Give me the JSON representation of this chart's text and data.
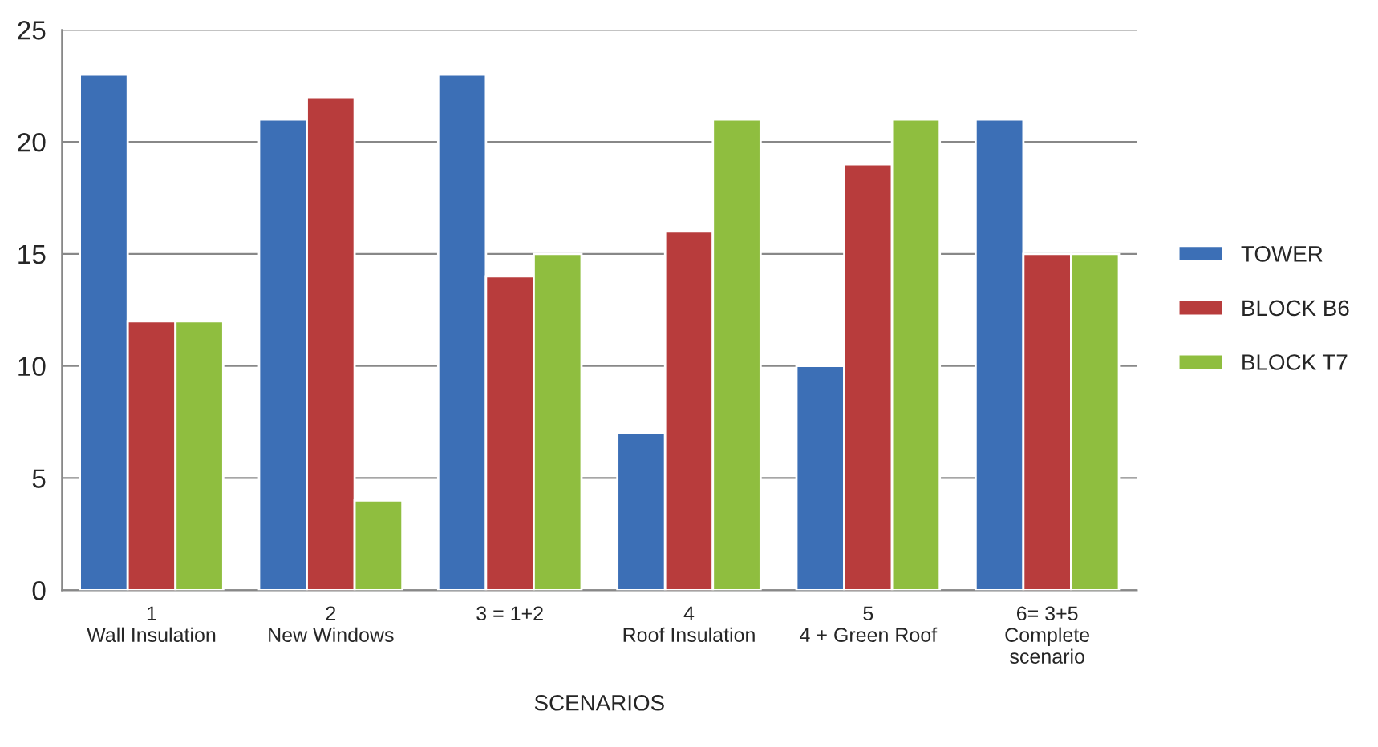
{
  "chart_data": {
    "type": "bar",
    "xlabel": "SCENARIOS",
    "categories": [
      "1\nWall Insulation",
      "2\nNew Windows",
      "3 = 1+2",
      "4\nRoof Insulation",
      "5\n4 + Green Roof",
      "6= 3+5\nComplete\nscenario"
    ],
    "series": [
      {
        "name": "TOWER",
        "color": "#3c6fb6",
        "values": [
          23,
          21,
          23,
          7,
          10,
          21
        ]
      },
      {
        "name": "BLOCK B6",
        "color": "#b83c3c",
        "values": [
          12,
          22,
          14,
          16,
          19,
          15
        ]
      },
      {
        "name": "BLOCK T7",
        "color": "#8fbe3f",
        "values": [
          12,
          4,
          15,
          21,
          21,
          15
        ]
      }
    ],
    "ylim": [
      0,
      25
    ],
    "yticks": [
      0,
      5,
      10,
      15,
      20,
      25
    ],
    "grid": "y",
    "legend": "right"
  }
}
